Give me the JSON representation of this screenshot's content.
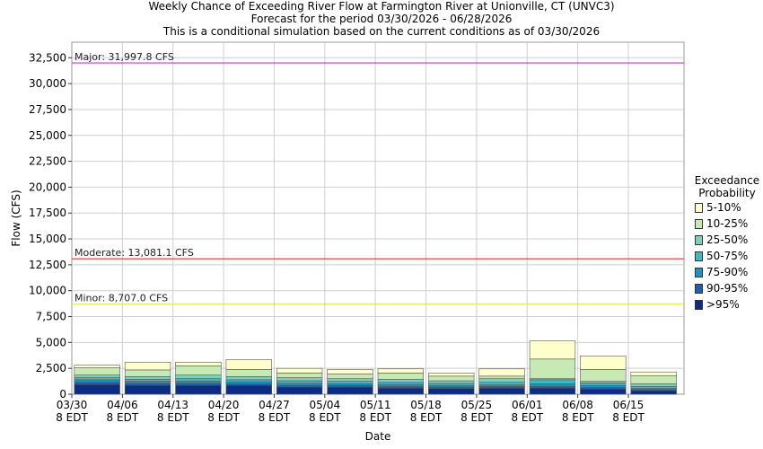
{
  "title": {
    "line1": "Weekly Chance of Exceeding River Flow at Farmington River at Unionville, CT (UNVC3)",
    "line2": "Forecast for the period 03/30/2026 - 06/28/2026",
    "line3": "This is a conditional simulation based on the current conditions as of 03/30/2026"
  },
  "legend": {
    "title_line1": "Exceedance",
    "title_line2": "Probability",
    "items": [
      {
        "label": "5-10%",
        "color": "#ffffcc"
      },
      {
        "label": "10-25%",
        "color": "#c7e9b4"
      },
      {
        "label": "25-50%",
        "color": "#7fcdbb"
      },
      {
        "label": "50-75%",
        "color": "#41b6c4"
      },
      {
        "label": "75-90%",
        "color": "#1d91c0"
      },
      {
        "label": "90-95%",
        "color": "#225ea8"
      },
      {
        ">95%": null,
        "label": ">95%",
        "color": "#0c2c84"
      }
    ]
  },
  "chart_data": {
    "type": "bar",
    "stacked": true,
    "xlabel": "Date",
    "ylabel": "Flow (CFS)",
    "ylim": [
      0,
      34000
    ],
    "yticks": [
      0,
      2500,
      5000,
      7500,
      10000,
      12500,
      15000,
      17500,
      20000,
      22500,
      25000,
      27500,
      30000,
      32500
    ],
    "ytick_labels": [
      "0",
      "2,500",
      "5,000",
      "7,500",
      "10,000",
      "12,500",
      "15,000",
      "17,500",
      "20,000",
      "22,500",
      "25,000",
      "27,500",
      "30,000",
      "32,500"
    ],
    "xtick_labels": [
      [
        "03/30",
        "8 EDT"
      ],
      [
        "04/06",
        "8 EDT"
      ],
      [
        "04/13",
        "8 EDT"
      ],
      [
        "04/20",
        "8 EDT"
      ],
      [
        "04/27",
        "8 EDT"
      ],
      [
        "05/04",
        "8 EDT"
      ],
      [
        "05/11",
        "8 EDT"
      ],
      [
        "05/18",
        "8 EDT"
      ],
      [
        "05/25",
        "8 EDT"
      ],
      [
        "06/01",
        "8 EDT"
      ],
      [
        "06/08",
        "8 EDT"
      ],
      [
        "06/15",
        "8 EDT"
      ]
    ],
    "grid": true,
    "bar_top_values": [
      [
        950,
        1150,
        1400,
        1600,
        1850,
        2550,
        2800
      ],
      [
        850,
        1050,
        1250,
        1450,
        1700,
        2350,
        3100
      ],
      [
        850,
        1050,
        1250,
        1500,
        1850,
        2750,
        3100
      ],
      [
        850,
        1000,
        1200,
        1400,
        1700,
        2400,
        3350
      ],
      [
        700,
        850,
        1050,
        1300,
        1600,
        2050,
        2500
      ],
      [
        700,
        850,
        1000,
        1250,
        1500,
        1950,
        2400
      ],
      [
        600,
        750,
        950,
        1150,
        1450,
        2050,
        2450
      ],
      [
        550,
        700,
        850,
        1050,
        1300,
        1750,
        2050
      ],
      [
        600,
        750,
        900,
        1150,
        1500,
        1750,
        2450
      ],
      [
        600,
        750,
        1000,
        1400,
        1500,
        3400,
        5150
      ],
      [
        500,
        650,
        850,
        1100,
        1250,
        2400,
        3700
      ],
      [
        350,
        450,
        550,
        750,
        1000,
        1800,
        2150
      ]
    ],
    "thresholds": [
      {
        "label": "Major: 31,997.8 CFS",
        "value": 31997.8,
        "color": "#cc33cc"
      },
      {
        "label": "Moderate: 13,081.1 CFS",
        "value": 13081.1,
        "color": "#e83030"
      },
      {
        "label": "Minor: 8,707.0 CFS",
        "value": 8707.0,
        "color": "#f0e060"
      }
    ],
    "series": [
      {
        "name": ">95%",
        "color": "#0c2c84"
      },
      {
        "name": "90-95%",
        "color": "#225ea8"
      },
      {
        "name": "75-90%",
        "color": "#1d91c0"
      },
      {
        "name": "50-75%",
        "color": "#41b6c4"
      },
      {
        "name": "25-50%",
        "color": "#7fcdbb"
      },
      {
        "name": "10-25%",
        "color": "#c7e9b4"
      },
      {
        "name": "5-10%",
        "color": "#ffffcc"
      }
    ]
  }
}
